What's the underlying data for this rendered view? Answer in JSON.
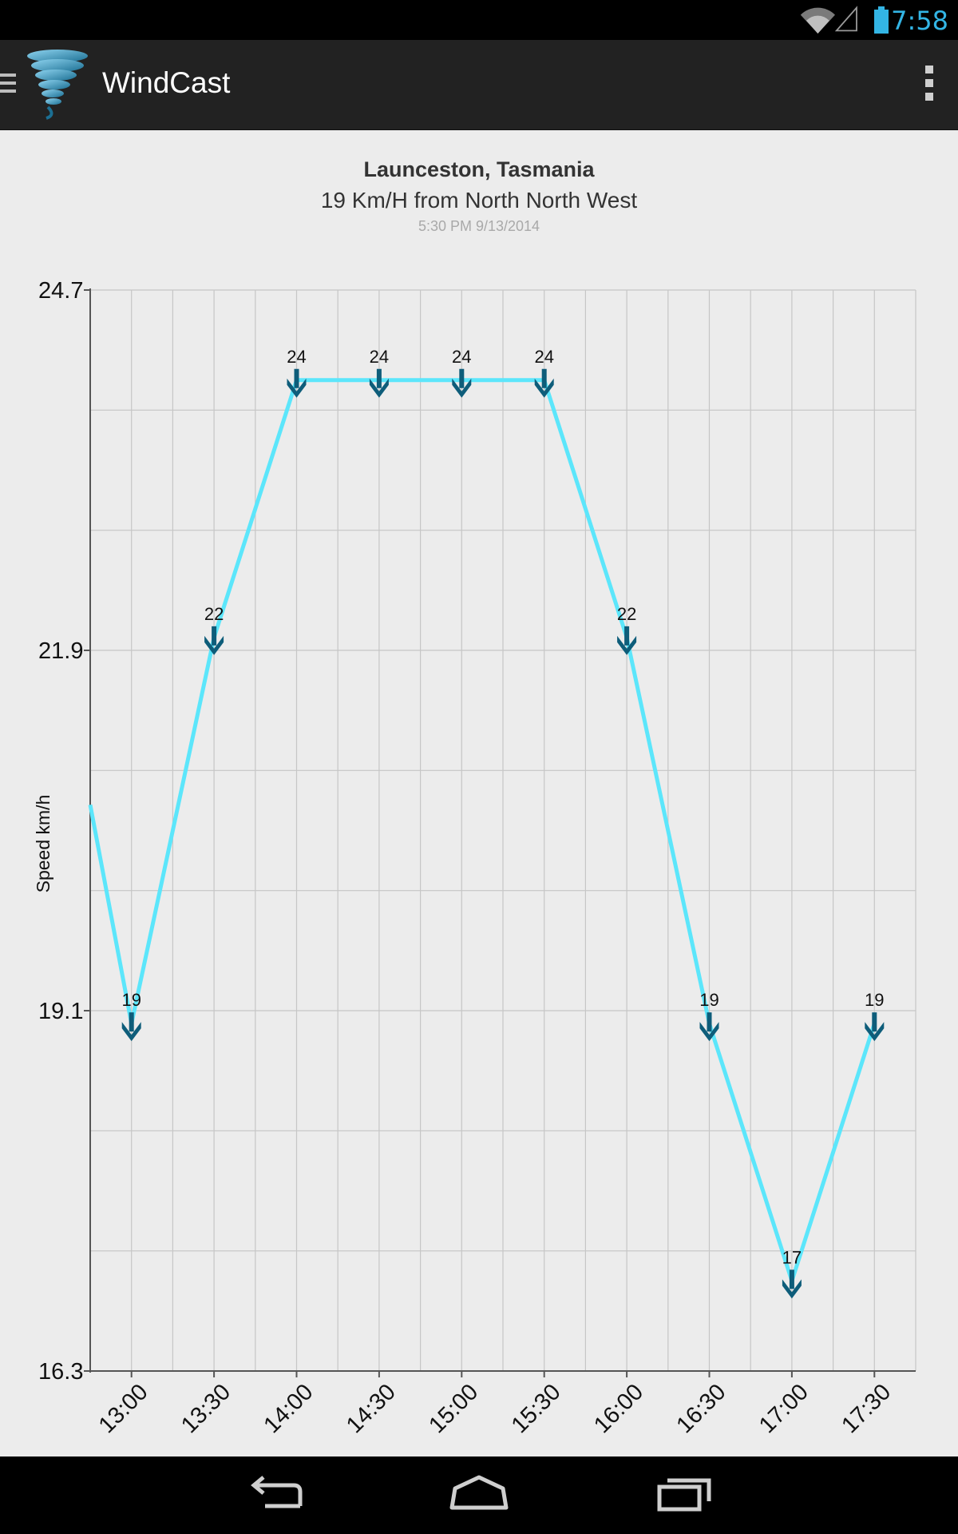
{
  "status_bar": {
    "time": "7:58",
    "icons": [
      "wifi-icon",
      "cell-signal-icon",
      "battery-icon"
    ],
    "accent": "#33b5e5"
  },
  "action_bar": {
    "title": "WindCast",
    "logo_icon": "tornado-icon",
    "overflow_icon": "overflow-menu-icon",
    "background": "#222222"
  },
  "header": {
    "location": "Launceston, Tasmania",
    "summary": "19 Km/H from North North West",
    "timestamp": "5:30 PM 9/13/2014"
  },
  "chart_data": {
    "type": "line",
    "ylabel": "Speed km/h",
    "ylim": [
      16.3,
      24.7
    ],
    "yticks": [
      "24.7",
      "21.9",
      "19.1",
      "16.3"
    ],
    "x": [
      "13:00",
      "13:30",
      "14:00",
      "14:30",
      "15:00",
      "15:30",
      "16:00",
      "16:30",
      "17:00",
      "17:30"
    ],
    "series": [
      {
        "values": [
          19,
          22,
          24,
          24,
          24,
          24,
          22,
          19,
          17,
          19
        ],
        "labels": [
          "19",
          "22",
          "24",
          "24",
          "24",
          "24",
          "22",
          "19",
          "17",
          "19"
        ],
        "marker": "direction-arrow",
        "line_color": "#5ce6fb",
        "marker_color": "#0e5d7a"
      }
    ],
    "line_start_value": 20.7,
    "grid": true
  },
  "nav_bar": {
    "buttons": [
      "back-icon",
      "home-icon",
      "recent-apps-icon"
    ]
  }
}
